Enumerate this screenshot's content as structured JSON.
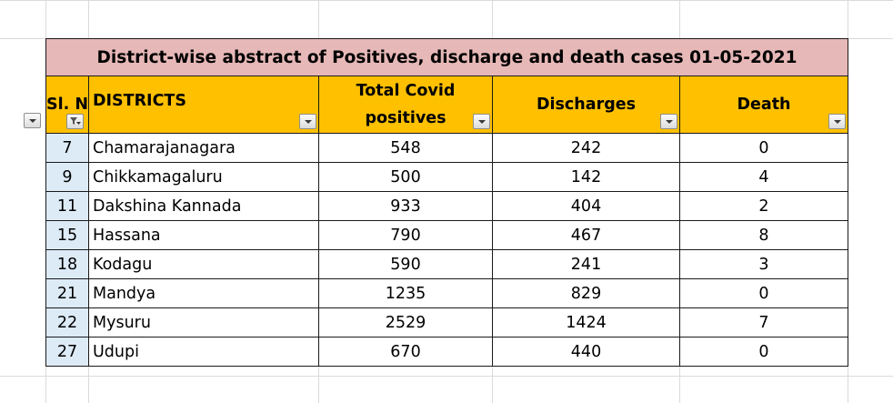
{
  "table": {
    "title": "District-wise abstract of Positives, discharge and death cases 01-05-2021",
    "headers": {
      "slno": "Sl. N",
      "districts": "DISTRICTS",
      "positives_line1": "Total Covid",
      "positives_line2": "positives",
      "discharges": "Discharges",
      "death": "Death"
    },
    "rows": [
      {
        "slno": "7",
        "district": "Chamarajanagara",
        "positives": "548",
        "discharges": "242",
        "death": "0"
      },
      {
        "slno": "9",
        "district": "Chikkamagaluru",
        "positives": "500",
        "discharges": "142",
        "death": "4"
      },
      {
        "slno": "11",
        "district": "Dakshina Kannada",
        "positives": "933",
        "discharges": "404",
        "death": "2"
      },
      {
        "slno": "15",
        "district": "Hassana",
        "positives": "790",
        "discharges": "467",
        "death": "8"
      },
      {
        "slno": "18",
        "district": "Kodagu",
        "positives": "590",
        "discharges": "241",
        "death": "3"
      },
      {
        "slno": "21",
        "district": "Mandya",
        "positives": "1235",
        "discharges": "829",
        "death": "0"
      },
      {
        "slno": "22",
        "district": "Mysuru",
        "positives": "2529",
        "discharges": "1424",
        "death": "7"
      },
      {
        "slno": "27",
        "district": "Udupi",
        "positives": "670",
        "discharges": "440",
        "death": "0"
      }
    ]
  },
  "colors": {
    "title_bg": "#e6b8b7",
    "header_bg": "#ffc000",
    "slno_bg": "#ddebf7"
  },
  "icons": {
    "dropdown": "dropdown-arrow-icon",
    "filter_active": "filter-funnel-icon"
  }
}
